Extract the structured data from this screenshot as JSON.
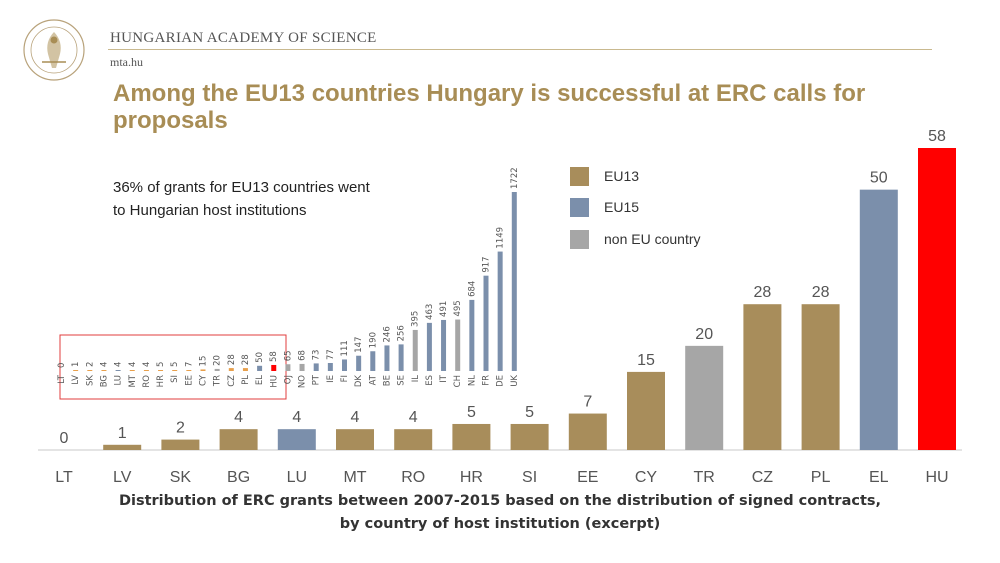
{
  "header": {
    "academy_name": "HUNGARIAN ACADEMY OF SCIENCE",
    "url": "mta.hu",
    "logo_icon": "academy-seal-icon"
  },
  "title": "Among the EU13 countries Hungary is successful at ERC calls for proposals",
  "note_lines": [
    "36% of grants for EU13 countries went",
    "to Hungarian host institutions"
  ],
  "caption_lines": [
    "Distribution of ERC grants between 2007-2015 based on the distribution of signed contracts,",
    "by country of host institution (excerpt)"
  ],
  "colors": {
    "EU13": "#a88d5b",
    "EU15": "#7b8fab",
    "non EU country": "#a6a6a6",
    "highlight": "#ff0000",
    "mini_EU13": "#e8a04c",
    "callout_border": "#e03c3c"
  },
  "chart_data": [
    {
      "type": "bar",
      "title": "",
      "xlabel": "",
      "ylabel": "",
      "categories": [
        "LT",
        "LV",
        "SK",
        "BG",
        "LU",
        "MT",
        "RO",
        "HR",
        "SI",
        "EE",
        "CY",
        "TR",
        "CZ",
        "PL",
        "EL",
        "HU"
      ],
      "values": [
        0,
        1,
        2,
        4,
        4,
        4,
        4,
        5,
        5,
        7,
        15,
        20,
        28,
        28,
        50,
        58
      ],
      "groups": [
        "EU13",
        "EU13",
        "EU13",
        "EU13",
        "EU15",
        "EU13",
        "EU13",
        "EU13",
        "EU13",
        "EU13",
        "EU13",
        "non EU country",
        "EU13",
        "EU13",
        "EU15",
        "EU13"
      ],
      "highlight": "HU",
      "ylim": [
        0,
        58
      ],
      "grid": false,
      "legend": {
        "position": "top-center",
        "entries": [
          "EU13",
          "EU15",
          "non EU country"
        ]
      }
    },
    {
      "type": "bar",
      "title": "",
      "categories": [
        "LT",
        "LV",
        "SK",
        "BG",
        "LU",
        "MT",
        "RO",
        "HR",
        "SI",
        "EE",
        "CY",
        "TR",
        "CZ",
        "PL",
        "EL",
        "HU",
        "OJ",
        "NO",
        "PT",
        "IE",
        "FI",
        "DK",
        "AT",
        "BE",
        "SE",
        "IL",
        "ES",
        "IT",
        "CH",
        "NL",
        "FR",
        "DE",
        "UK"
      ],
      "values": [
        0,
        1,
        2,
        4,
        4,
        4,
        4,
        5,
        5,
        7,
        15,
        20,
        28,
        28,
        50,
        58,
        65,
        68,
        73,
        77,
        111,
        147,
        190,
        246,
        256,
        395,
        463,
        491,
        495,
        684,
        917,
        1149,
        1722
      ],
      "groups": [
        "EU13",
        "EU13",
        "EU13",
        "EU13",
        "EU15",
        "EU13",
        "EU13",
        "EU13",
        "EU13",
        "EU13",
        "EU13",
        "non EU country",
        "EU13",
        "EU13",
        "EU15",
        "EU13",
        "non EU country",
        "non EU country",
        "EU15",
        "EU15",
        "EU15",
        "EU15",
        "EU15",
        "EU15",
        "EU15",
        "non EU country",
        "EU15",
        "EU15",
        "non EU country",
        "EU15",
        "EU15",
        "EU15",
        "EU15"
      ],
      "highlight": "HU",
      "ylim": [
        0,
        1722
      ],
      "callout": {
        "from": "LT",
        "to": "HU"
      }
    }
  ]
}
